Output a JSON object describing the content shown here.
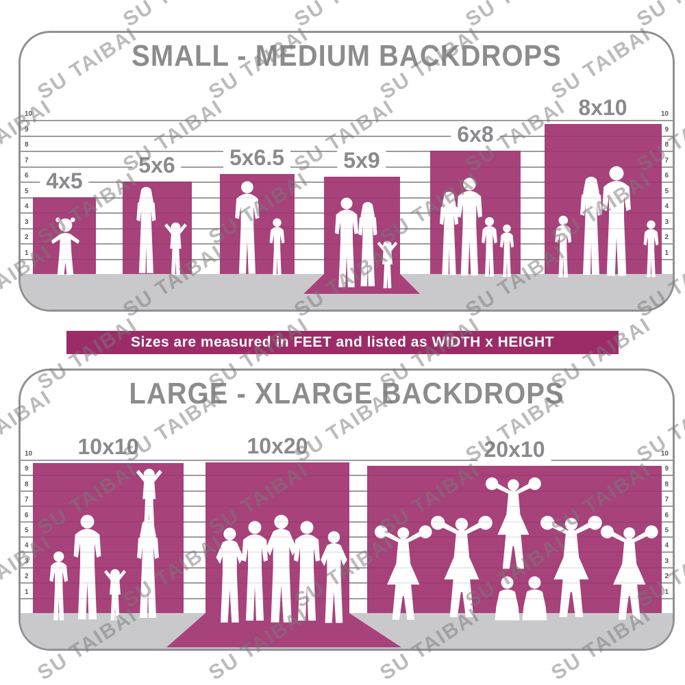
{
  "watermark": {
    "text": "SU TAIBAI"
  },
  "banner": {
    "text": "Sizes are measured in FEET and listed as WIDTH x HEIGHT",
    "bg_color": "#9c2c68"
  },
  "colors": {
    "backdrop_magenta": "#a7427b",
    "banner_magenta": "#9c2c68",
    "title_gray": "#8c8c8c",
    "label_gray": "#8a8a8e",
    "floor_gray": "#c9c9cc",
    "panel_border_gray": "#909094",
    "gridline_gray": "#a9a9a9",
    "silhouette_white": "#ffffff"
  },
  "scale_ticks": [
    10,
    9,
    8,
    7,
    6,
    5,
    4,
    3,
    2,
    1
  ],
  "panels": [
    {
      "title": "SMALL - MEDIUM BACKDROPS",
      "bars": [
        {
          "label": "4x5",
          "figures": "toddler-girl"
        },
        {
          "label": "5x6",
          "figures": "mother-with-child-arms-raised"
        },
        {
          "label": "5x6.5",
          "figures": "father-with-son"
        },
        {
          "label": "5x9",
          "figures": "couple-with-child-on-floor-sweep"
        },
        {
          "label": "6x8",
          "figures": "family-of-four"
        },
        {
          "label": "8x10",
          "figures": "family-of-five"
        }
      ]
    },
    {
      "title": "LARGE - XLARGE BACKDROPS",
      "bars": [
        {
          "label": "10x10",
          "figures": "family-with-child-on-shoulders"
        },
        {
          "label": "10x20",
          "figures": "group-of-five-men-on-floor-sweep"
        },
        {
          "label": "20x10",
          "figures": "cheerleading-squad-pyramid"
        }
      ]
    }
  ],
  "chart_data": [
    {
      "type": "bar",
      "title": "SMALL - MEDIUM BACKDROPS",
      "categories": [
        "4x5",
        "5x6",
        "5x6.5",
        "5x9",
        "6x8",
        "8x10"
      ],
      "series": [
        {
          "name": "width_ft",
          "values": [
            4,
            5,
            5,
            5,
            6,
            8
          ]
        },
        {
          "name": "height_ft",
          "values": [
            5,
            6,
            6.5,
            9,
            8,
            10
          ]
        }
      ],
      "ylabel": "feet",
      "ylim": [
        0,
        10
      ],
      "grid": true,
      "tick_labels": [
        10,
        9,
        8,
        7,
        6,
        5,
        4,
        3,
        2,
        1
      ],
      "note": "bars drawn against a 1-10 ft ruled wall; 5x9 includes a floor sweep"
    },
    {
      "type": "bar",
      "title": "LARGE - XLARGE BACKDROPS",
      "categories": [
        "10x10",
        "10x20",
        "20x10"
      ],
      "series": [
        {
          "name": "width_ft",
          "values": [
            10,
            10,
            20
          ]
        },
        {
          "name": "height_ft",
          "values": [
            10,
            20,
            10
          ]
        }
      ],
      "ylabel": "feet",
      "ylim": [
        0,
        10
      ],
      "grid": true,
      "tick_labels": [
        10,
        9,
        8,
        7,
        6,
        5,
        4,
        3,
        2,
        1
      ],
      "note": "bars drawn against a 1-10 ft ruled wall; 10x20 includes a floor sweep"
    }
  ]
}
